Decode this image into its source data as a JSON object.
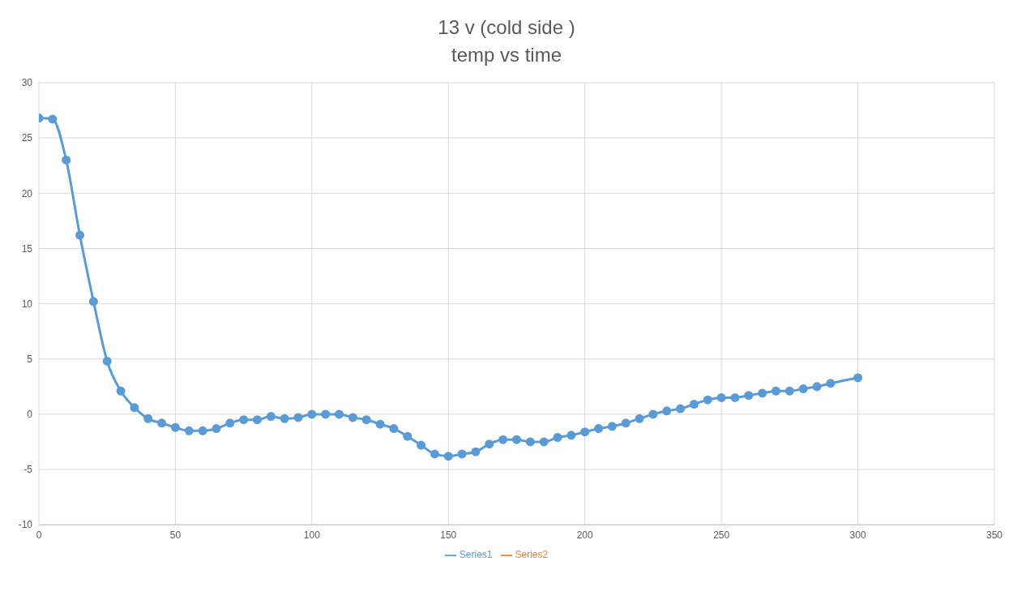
{
  "chart_data": {
    "type": "line",
    "title": "13 v (cold side )",
    "subtitle": "temp vs time",
    "x": [
      0,
      5,
      10,
      15,
      20,
      25,
      30,
      35,
      40,
      45,
      50,
      55,
      60,
      65,
      70,
      75,
      80,
      85,
      90,
      95,
      100,
      105,
      110,
      115,
      120,
      125,
      130,
      135,
      140,
      145,
      150,
      155,
      160,
      165,
      170,
      175,
      180,
      185,
      190,
      195,
      200,
      205,
      210,
      215,
      220,
      225,
      230,
      235,
      240,
      245,
      250,
      255,
      260,
      265,
      270,
      275,
      280,
      285,
      290,
      300
    ],
    "series": [
      {
        "name": "Series1",
        "color": "#5b9bd5",
        "values": [
          26.8,
          26.7,
          23,
          16.2,
          10.2,
          4.8,
          2.1,
          0.6,
          -0.4,
          -0.8,
          -1.2,
          -1.5,
          -1.5,
          -1.3,
          -0.8,
          -0.5,
          -0.5,
          -0.2,
          -0.4,
          -0.3,
          0,
          0,
          0,
          -0.3,
          -0.5,
          -0.9,
          -1.3,
          -2,
          -2.8,
          -3.6,
          -3.8,
          -3.6,
          -3.4,
          -2.7,
          -2.3,
          -2.3,
          -2.5,
          -2.5,
          -2.1,
          -1.9,
          -1.6,
          -1.3,
          -1.1,
          -0.8,
          -0.4,
          0,
          0.3,
          0.5,
          0.9,
          1.3,
          1.5,
          1.5,
          1.7,
          1.9,
          2.1,
          2.1,
          2.3,
          2.5,
          2.8,
          3.3
        ]
      },
      {
        "name": "Series2",
        "color": "#ed7d31",
        "values": [
          null,
          null,
          null,
          null,
          null,
          null,
          null,
          null,
          null,
          null,
          null,
          null,
          null,
          null,
          null,
          null,
          null,
          null,
          null,
          null,
          null,
          null,
          null,
          null,
          null,
          null,
          null,
          null,
          null,
          null,
          null,
          null,
          null,
          null,
          null,
          null,
          null,
          null,
          null,
          null,
          null,
          null,
          null,
          null,
          null,
          null,
          null,
          null,
          null,
          null,
          null,
          null,
          null,
          null,
          null,
          null,
          null,
          null,
          null,
          null
        ]
      }
    ],
    "xlim": [
      0,
      350
    ],
    "xticks": [
      0,
      50,
      100,
      150,
      200,
      250,
      300,
      350
    ],
    "ylim": [
      -10,
      30
    ],
    "yticks": [
      -10,
      -5,
      0,
      5,
      10,
      15,
      20,
      25,
      30
    ],
    "grid": true,
    "legend": "bottom",
    "marker": "circle",
    "line_style": "solid"
  }
}
